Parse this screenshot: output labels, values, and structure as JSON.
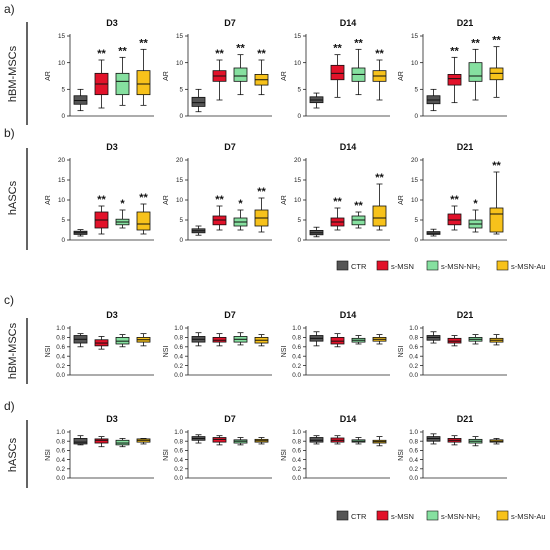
{
  "figure": {
    "section_labels": [
      "a)",
      "b)",
      "c)",
      "d)"
    ],
    "legend": [
      {
        "label": "CTR",
        "color": "#555555"
      },
      {
        "label": "s-MSN",
        "color": "#e2122a"
      },
      {
        "label": "s-MSN-NH₂",
        "color": "#86e0a0"
      },
      {
        "label": "s-MSN-Au",
        "color": "#f7c21b"
      }
    ]
  },
  "chart_data": [
    {
      "type": "box",
      "row_label": "hBM-MSCs",
      "ylabel": "AR",
      "ylim": [
        0,
        15
      ],
      "yticks": [
        0,
        5,
        10,
        15
      ],
      "categories": [
        "CTR",
        "s-MSN",
        "s-MSN-NH₂",
        "s-MSN-Au"
      ],
      "panels": [
        {
          "title": "D3",
          "boxes": [
            [
              1,
              2.2,
              2.9,
              3.8,
              5
            ],
            [
              1.5,
              4,
              6,
              8,
              10.5
            ],
            [
              2,
              4,
              6.5,
              8,
              11
            ],
            [
              2,
              4,
              6,
              8.5,
              12.5
            ]
          ],
          "marks": [
            "",
            "**",
            "**",
            "**"
          ]
        },
        {
          "title": "D7",
          "boxes": [
            [
              0.8,
              1.8,
              2.5,
              3.5,
              5
            ],
            [
              3,
              6.5,
              7.5,
              8.5,
              10.5
            ],
            [
              4,
              6.5,
              7.5,
              9,
              11.5
            ],
            [
              4,
              5.8,
              6.8,
              7.8,
              10.5
            ]
          ],
          "marks": [
            "",
            "**",
            "**",
            "**"
          ]
        },
        {
          "title": "D14",
          "boxes": [
            [
              1.5,
              2.5,
              3,
              3.6,
              4.3
            ],
            [
              3.5,
              6.8,
              8,
              9.5,
              11.5
            ],
            [
              4,
              6.5,
              7.8,
              9,
              12.5
            ],
            [
              3,
              6.5,
              7.5,
              8.5,
              10.5
            ]
          ],
          "marks": [
            "",
            "**",
            "**",
            "**"
          ]
        },
        {
          "title": "D21",
          "boxes": [
            [
              1,
              2.3,
              3,
              3.8,
              5
            ],
            [
              2.5,
              5.8,
              7,
              7.8,
              11
            ],
            [
              3,
              6.5,
              7.5,
              10,
              12.5
            ],
            [
              3.5,
              6.8,
              8,
              9,
              13
            ]
          ],
          "marks": [
            "",
            "**",
            "**",
            "**"
          ]
        }
      ]
    },
    {
      "type": "box",
      "row_label": "hASCs",
      "ylabel": "AR",
      "ylim": [
        0,
        20
      ],
      "yticks": [
        0,
        5,
        10,
        15,
        20
      ],
      "categories": [
        "CTR",
        "s-MSN",
        "s-MSN-NH₂",
        "s-MSN-Au"
      ],
      "panels": [
        {
          "title": "D3",
          "boxes": [
            [
              1,
              1.4,
              1.8,
              2.2,
              2.6
            ],
            [
              1.5,
              3,
              5,
              7,
              8.5
            ],
            [
              3,
              3.8,
              4.5,
              5.2,
              7.5
            ],
            [
              1.5,
              2.5,
              4,
              7,
              9
            ]
          ],
          "marks": [
            "",
            "**",
            "*",
            "**"
          ]
        },
        {
          "title": "D7",
          "boxes": [
            [
              1.2,
              1.8,
              2.3,
              2.8,
              3.5
            ],
            [
              2.5,
              3.8,
              5,
              6,
              8.5
            ],
            [
              2.5,
              3.5,
              4.5,
              5.5,
              7.5
            ],
            [
              2,
              3.5,
              5.5,
              7.5,
              10.5
            ]
          ],
          "marks": [
            "",
            "**",
            "*",
            "**"
          ]
        },
        {
          "title": "D14",
          "boxes": [
            [
              0.8,
              1.3,
              1.8,
              2.4,
              3.2
            ],
            [
              2.5,
              3.5,
              4.5,
              5.5,
              8
            ],
            [
              3,
              3.8,
              5,
              6,
              7
            ],
            [
              2.5,
              3.5,
              5.5,
              8.5,
              14
            ]
          ],
          "marks": [
            "",
            "**",
            "**",
            "**"
          ]
        },
        {
          "title": "D21",
          "boxes": [
            [
              1,
              1.4,
              1.7,
              2.1,
              2.7
            ],
            [
              2.5,
              3.8,
              5,
              6.5,
              8.5
            ],
            [
              2,
              3,
              4,
              5,
              7.5
            ],
            [
              1.5,
              2,
              6.5,
              8,
              17
            ]
          ],
          "marks": [
            "",
            "**",
            "*",
            "**"
          ]
        }
      ]
    },
    {
      "type": "box",
      "row_label": "hBM-MSCs",
      "ylabel": "NSI",
      "ylim": [
        0,
        1.0
      ],
      "yticks": [
        "0.0",
        "0.2",
        "0.4",
        "0.6",
        "0.8",
        "1.0"
      ],
      "categories": [
        "CTR",
        "s-MSN",
        "s-MSN-NH₂",
        "s-MSN-Au"
      ],
      "panels": [
        {
          "title": "D3",
          "boxes": [
            [
              0.6,
              0.68,
              0.76,
              0.84,
              0.88
            ],
            [
              0.55,
              0.62,
              0.68,
              0.75,
              0.82
            ],
            [
              0.6,
              0.66,
              0.72,
              0.8,
              0.86
            ],
            [
              0.62,
              0.7,
              0.75,
              0.8,
              0.88
            ]
          ],
          "marks": [
            "",
            "",
            "",
            ""
          ]
        },
        {
          "title": "D7",
          "boxes": [
            [
              0.62,
              0.7,
              0.76,
              0.82,
              0.9
            ],
            [
              0.62,
              0.7,
              0.74,
              0.8,
              0.88
            ],
            [
              0.64,
              0.7,
              0.76,
              0.82,
              0.9
            ],
            [
              0.62,
              0.68,
              0.74,
              0.8,
              0.86
            ]
          ],
          "marks": [
            "",
            "",
            "",
            ""
          ]
        },
        {
          "title": "D14",
          "boxes": [
            [
              0.62,
              0.72,
              0.78,
              0.84,
              0.92
            ],
            [
              0.6,
              0.66,
              0.72,
              0.8,
              0.88
            ],
            [
              0.66,
              0.7,
              0.74,
              0.78,
              0.84
            ],
            [
              0.66,
              0.72,
              0.76,
              0.8,
              0.86
            ]
          ],
          "marks": [
            "",
            "",
            "",
            ""
          ]
        },
        {
          "title": "D21",
          "boxes": [
            [
              0.68,
              0.74,
              0.8,
              0.84,
              0.92
            ],
            [
              0.62,
              0.68,
              0.72,
              0.78,
              0.84
            ],
            [
              0.66,
              0.72,
              0.76,
              0.8,
              0.86
            ],
            [
              0.64,
              0.7,
              0.74,
              0.78,
              0.86
            ]
          ],
          "marks": [
            "",
            "",
            "",
            ""
          ]
        }
      ]
    },
    {
      "type": "box",
      "row_label": "hASCs",
      "ylabel": "NSI",
      "ylim": [
        0,
        1.0
      ],
      "yticks": [
        "0.0",
        "0.2",
        "0.4",
        "0.6",
        "0.8",
        "1.0"
      ],
      "categories": [
        "CTR",
        "s-MSN",
        "s-MSN-NH₂",
        "s-MSN-Au"
      ],
      "panels": [
        {
          "title": "D3",
          "boxes": [
            [
              0.72,
              0.74,
              0.78,
              0.86,
              0.92
            ],
            [
              0.68,
              0.76,
              0.82,
              0.85,
              0.9
            ],
            [
              0.68,
              0.72,
              0.76,
              0.82,
              0.86
            ],
            [
              0.74,
              0.78,
              0.82,
              0.85,
              0.86
            ]
          ],
          "marks": [
            "",
            "",
            "",
            ""
          ]
        },
        {
          "title": "D7",
          "boxes": [
            [
              0.76,
              0.82,
              0.86,
              0.9,
              0.94
            ],
            [
              0.72,
              0.78,
              0.84,
              0.88,
              0.92
            ],
            [
              0.72,
              0.76,
              0.8,
              0.83,
              0.88
            ],
            [
              0.74,
              0.78,
              0.81,
              0.84,
              0.88
            ]
          ],
          "marks": [
            "",
            "",
            "",
            ""
          ]
        },
        {
          "title": "D14",
          "boxes": [
            [
              0.74,
              0.78,
              0.82,
              0.88,
              0.92
            ],
            [
              0.74,
              0.78,
              0.82,
              0.87,
              0.92
            ],
            [
              0.74,
              0.78,
              0.8,
              0.83,
              0.88
            ],
            [
              0.7,
              0.76,
              0.79,
              0.82,
              0.9
            ]
          ],
          "marks": [
            "",
            "",
            "",
            ""
          ]
        },
        {
          "title": "D21",
          "boxes": [
            [
              0.74,
              0.8,
              0.86,
              0.9,
              0.96
            ],
            [
              0.72,
              0.78,
              0.82,
              0.86,
              0.92
            ],
            [
              0.7,
              0.76,
              0.8,
              0.84,
              0.9
            ],
            [
              0.74,
              0.78,
              0.8,
              0.83,
              0.86
            ]
          ],
          "marks": [
            "",
            "",
            "",
            ""
          ]
        }
      ]
    }
  ]
}
